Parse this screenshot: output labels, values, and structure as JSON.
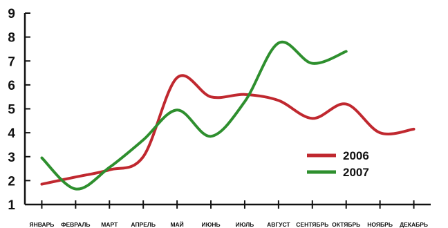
{
  "chart_data": {
    "type": "line",
    "categories": [
      "ЯНВАРЬ",
      "ФЕВРАЛЬ",
      "МАРТ",
      "АПРЕЛЬ",
      "МАЙ",
      "ИЮНЬ",
      "ИЮЛЬ",
      "АВГУСТ",
      "СЕНТЯБРЬ",
      "ОКТЯБРЬ",
      "НОЯБРЬ",
      "ДЕКАБРЬ"
    ],
    "yticks": [
      "1",
      "2",
      "3",
      "4",
      "5",
      "6",
      "7",
      "8",
      "9"
    ],
    "ylim": [
      1,
      9
    ],
    "grid": false,
    "legend_position": "right",
    "series": [
      {
        "name": "2006",
        "color": "#c0282f",
        "points": [
          [
            0,
            1.85
          ],
          [
            1,
            2.15
          ],
          [
            2,
            2.45
          ],
          [
            3,
            3.0
          ],
          [
            4,
            6.3
          ],
          [
            5,
            5.5
          ],
          [
            6,
            5.6
          ],
          [
            7,
            5.35
          ],
          [
            8,
            4.6
          ],
          [
            9,
            5.2
          ],
          [
            10,
            4.0
          ],
          [
            11,
            4.15
          ]
        ]
      },
      {
        "name": "2007",
        "color": "#2e8f2e",
        "points": [
          [
            0,
            2.95
          ],
          [
            1,
            1.65
          ],
          [
            2,
            2.55
          ],
          [
            3,
            3.7
          ],
          [
            4,
            4.95
          ],
          [
            5,
            3.85
          ],
          [
            6,
            5.3
          ],
          [
            7,
            7.75
          ],
          [
            8,
            6.9
          ],
          [
            9,
            7.4
          ]
        ]
      }
    ]
  }
}
